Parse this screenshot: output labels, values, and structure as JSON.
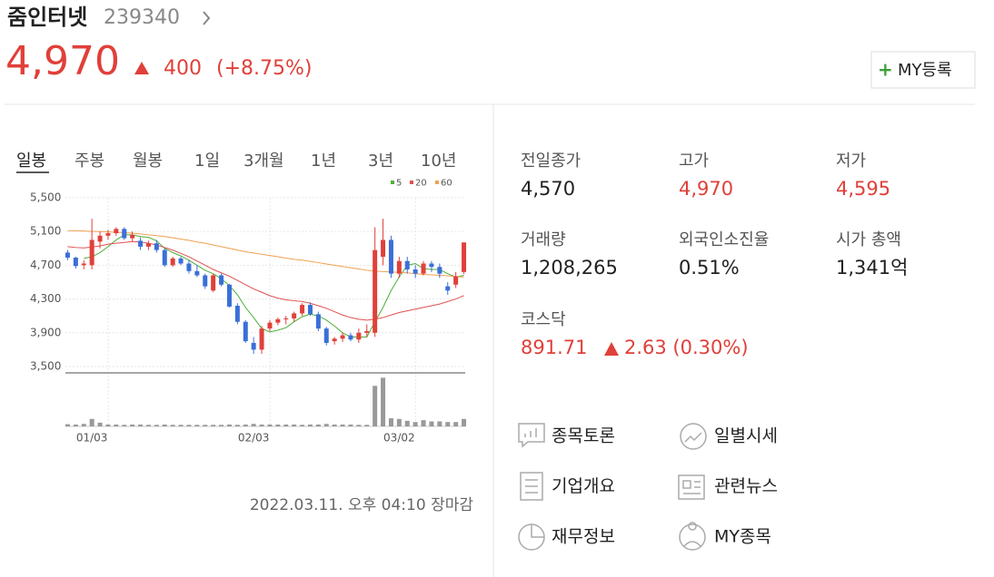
{
  "header": {
    "name": "줌인터넷",
    "code": "239340",
    "price": "4,970",
    "change": "400",
    "change_pct": "(+8.75%)",
    "button": "MY등록"
  },
  "tabs": [
    "일봉",
    "주봉",
    "월봉",
    "1일",
    "3개월",
    "1년",
    "3년",
    "10년"
  ],
  "chart_data": {
    "type": "candlestick",
    "categories": [
      null,
      null,
      null,
      "01/03",
      null,
      null,
      null,
      null,
      null,
      null,
      null,
      null,
      null,
      null,
      null,
      null,
      null,
      null,
      null,
      null,
      null,
      null,
      null,
      "02/03",
      null,
      null,
      null,
      null,
      null,
      null,
      null,
      null,
      null,
      null,
      null,
      null,
      null,
      null,
      null,
      null,
      null,
      "03/02",
      null,
      null,
      null,
      null,
      null,
      null,
      null,
      null
    ],
    "open": [
      4850,
      4790,
      4700,
      4700,
      4980,
      5050,
      5080,
      5130,
      5020,
      4990,
      4920,
      4960,
      4880,
      4700,
      4780,
      4720,
      4630,
      4580,
      4400,
      4580,
      4470,
      4220,
      4030,
      3780,
      3700,
      3950,
      4020,
      4060,
      4070,
      4130,
      4230,
      4120,
      3950,
      3800,
      3830,
      3870,
      3820,
      3900,
      3900,
      4800,
      5000,
      4600,
      4750,
      4650,
      4600,
      4720,
      4680,
      4450,
      4470,
      4620
    ],
    "high": [
      4880,
      4800,
      4760,
      5250,
      5100,
      5120,
      5150,
      5150,
      5100,
      5030,
      4990,
      5000,
      4900,
      4800,
      4800,
      4760,
      4700,
      4600,
      4600,
      4600,
      4480,
      4250,
      4050,
      3850,
      3980,
      4050,
      4080,
      4100,
      4150,
      4250,
      4260,
      4150,
      3970,
      3850,
      3900,
      3900,
      3950,
      4000,
      5150,
      5250,
      5050,
      4800,
      4800,
      4700,
      4750,
      4750,
      4720,
      4500,
      4620,
      4970
    ],
    "low": [
      4760,
      4660,
      4650,
      4650,
      4900,
      5000,
      5050,
      5000,
      4980,
      4880,
      4880,
      4850,
      4680,
      4680,
      4700,
      4600,
      4560,
      4420,
      4380,
      4450,
      4200,
      4000,
      3780,
      3650,
      3650,
      3920,
      3990,
      4000,
      4030,
      4100,
      4100,
      3920,
      3750,
      3760,
      3790,
      3800,
      3780,
      3850,
      3850,
      4700,
      4550,
      4550,
      4600,
      4550,
      4580,
      4620,
      4550,
      4350,
      4430,
      4595
    ],
    "close": [
      4790,
      4690,
      4720,
      5000,
      5050,
      5080,
      5130,
      5020,
      5060,
      4920,
      4960,
      4880,
      4700,
      4780,
      4720,
      4630,
      4580,
      4450,
      4580,
      4470,
      4210,
      4030,
      3800,
      3700,
      3950,
      4020,
      4060,
      4070,
      4130,
      4230,
      4120,
      3950,
      3780,
      3830,
      3870,
      3820,
      3900,
      3920,
      4880,
      5000,
      4600,
      4750,
      4650,
      4600,
      4720,
      4680,
      4600,
      4400,
      4570,
      4970
    ],
    "volumes": [
      350000,
      300000,
      400000,
      1200000,
      600000,
      300000,
      300000,
      250000,
      300000,
      300000,
      250000,
      250000,
      300000,
      250000,
      250000,
      250000,
      250000,
      250000,
      250000,
      250000,
      300000,
      250000,
      300000,
      400000,
      300000,
      300000,
      300000,
      300000,
      300000,
      250000,
      300000,
      300000,
      400000,
      300000,
      300000,
      300000,
      250000,
      250000,
      6500000,
      7800000,
      1300000,
      1200000,
      900000,
      700000,
      1000000,
      800000,
      800000,
      700000,
      700000,
      1200000
    ],
    "up_color": "#e0403a",
    "down_color": "#3a6fd8",
    "series": [
      {
        "name": "5",
        "color": "#4caf3a",
        "values": [
          null,
          null,
          4780,
          4800,
          4850,
          4920,
          5000,
          5060,
          5060,
          5040,
          5030,
          4990,
          4900,
          4850,
          4810,
          4760,
          4700,
          4640,
          4600,
          4540,
          4460,
          4350,
          4200,
          4080,
          3950,
          3910,
          3930,
          3960,
          4030,
          4090,
          4120,
          4100,
          4050,
          3980,
          3900,
          3850,
          3850,
          3850,
          4030,
          4200,
          4400,
          4560,
          4700,
          4720,
          4660,
          4650,
          4650,
          4600,
          4560,
          4580
        ]
      },
      {
        "name": "20",
        "color": "#e05050",
        "values": [
          4920,
          4910,
          4905,
          4915,
          4930,
          4950,
          4960,
          4970,
          4980,
          4975,
          4960,
          4940,
          4910,
          4880,
          4840,
          4800,
          4750,
          4700,
          4650,
          4610,
          4570,
          4520,
          4470,
          4420,
          4380,
          4340,
          4310,
          4290,
          4280,
          4270,
          4250,
          4220,
          4190,
          4150,
          4110,
          4080,
          4060,
          4050,
          4060,
          4080,
          4110,
          4140,
          4160,
          4180,
          4200,
          4220,
          4240,
          4270,
          4300,
          4340
        ]
      },
      {
        "name": "60",
        "color": "#f0a050",
        "values": [
          5110,
          5110,
          5105,
          5100,
          5100,
          5095,
          5090,
          5085,
          5080,
          5070,
          5060,
          5050,
          5040,
          5025,
          5010,
          4995,
          4975,
          4960,
          4940,
          4920,
          4900,
          4880,
          4860,
          4845,
          4830,
          4815,
          4800,
          4785,
          4770,
          4760,
          4745,
          4730,
          4715,
          4700,
          4685,
          4670,
          4655,
          4640,
          4630,
          4625,
          4620,
          4615,
          4610,
          4600,
          4590,
          4585,
          4580,
          4575,
          4565,
          4560
        ]
      }
    ],
    "ylim": [
      3425,
      5585
    ],
    "yticks": [
      {
        "value": 3500,
        "label": "3,500"
      },
      {
        "value": 3900,
        "label": "3,900"
      },
      {
        "value": 4300,
        "label": "4,300"
      },
      {
        "value": 4700,
        "label": "4,700"
      },
      {
        "value": 5100,
        "label": "5,100"
      },
      {
        "value": 5500,
        "label": "5,500"
      }
    ],
    "vlim": [
      0,
      8000000
    ],
    "grid": true
  },
  "timestamp": "2022.03.11. 오후 04:10 장마감",
  "stats": [
    {
      "label": "전일종가",
      "value": "4,570"
    },
    {
      "label": "고가",
      "value": "4,970",
      "color": "#e0403a"
    },
    {
      "label": "저가",
      "value": "4,595",
      "color": "#e0403a"
    },
    {
      "label": "거래량",
      "value": "1,208,265"
    },
    {
      "label": "외국인소진율",
      "value": "0.51%"
    },
    {
      "label": "시가 총액",
      "value": "1,341억"
    }
  ],
  "index": {
    "label": "코스닥",
    "value": "891.71",
    "change": "2.63 (0.30%)"
  },
  "links": [
    "종목토론",
    "일별시세",
    "기업개요",
    "관련뉴스",
    "재무정보",
    "MY종목"
  ]
}
